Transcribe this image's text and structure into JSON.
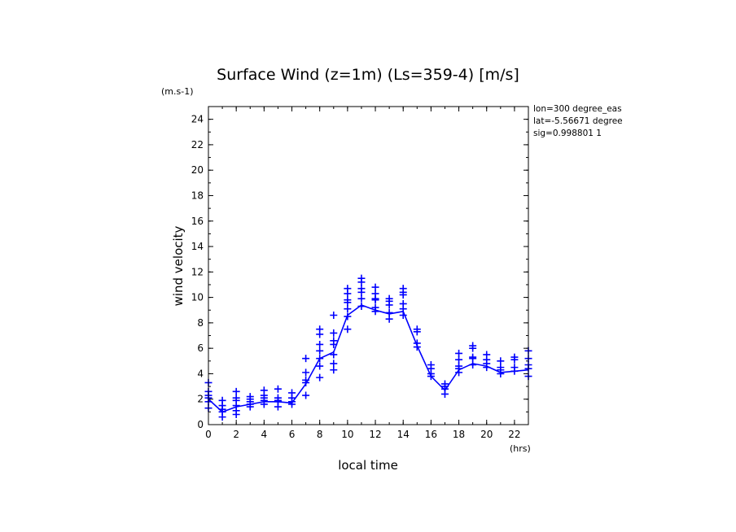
{
  "chart_data": {
    "type": "line",
    "title": "Surface Wind (z=1m) (Ls=359-4) [m/s]",
    "ylabel": "wind velocity",
    "yunit": "(m.s-1)",
    "xlabel": "local time",
    "xunit": "(hrs)",
    "xlim": [
      0,
      23
    ],
    "ylim": [
      0,
      25
    ],
    "xticks": [
      0,
      2,
      4,
      6,
      8,
      10,
      12,
      14,
      16,
      18,
      20,
      22
    ],
    "yticks": [
      0,
      2,
      4,
      6,
      8,
      10,
      12,
      14,
      16,
      18,
      20,
      22,
      24
    ],
    "annotations": [
      "lon=300 degree_eas",
      "lat=-5.56671 degree",
      "sig=0.998801 1"
    ],
    "colors": {
      "series": "#0000ff",
      "axes": "#000000"
    },
    "series": [
      {
        "type": "line",
        "x": [
          0,
          1,
          2,
          3,
          4,
          5,
          6,
          7,
          8,
          9,
          10,
          11,
          12,
          13,
          14,
          15,
          16,
          17,
          18,
          19,
          20,
          21,
          22,
          23
        ],
        "values": [
          2.0,
          1.0,
          1.4,
          1.6,
          1.8,
          1.8,
          1.7,
          3.2,
          5.2,
          5.7,
          8.6,
          9.4,
          9.0,
          8.7,
          8.9,
          6.2,
          3.8,
          2.7,
          4.3,
          4.8,
          4.6,
          4.1,
          4.2,
          4.3
        ]
      },
      {
        "type": "scatter",
        "marker": "+",
        "points": [
          [
            0,
            3.3
          ],
          [
            0,
            2.6
          ],
          [
            0,
            2.3
          ],
          [
            0,
            2.1
          ],
          [
            0,
            1.8
          ],
          [
            0,
            1.3
          ],
          [
            1,
            1.9
          ],
          [
            1,
            1.5
          ],
          [
            1,
            1.2
          ],
          [
            1,
            1.0
          ],
          [
            1,
            0.6
          ],
          [
            2,
            2.6
          ],
          [
            2,
            2.1
          ],
          [
            2,
            1.9
          ],
          [
            2,
            1.5
          ],
          [
            2,
            1.1
          ],
          [
            2,
            0.8
          ],
          [
            3,
            2.2
          ],
          [
            3,
            2.0
          ],
          [
            3,
            1.8
          ],
          [
            3,
            1.6
          ],
          [
            3,
            1.4
          ],
          [
            4,
            2.7
          ],
          [
            4,
            2.3
          ],
          [
            4,
            2.1
          ],
          [
            4,
            1.9
          ],
          [
            4,
            1.6
          ],
          [
            5,
            2.8
          ],
          [
            5,
            2.1
          ],
          [
            5,
            1.9
          ],
          [
            5,
            1.8
          ],
          [
            5,
            1.4
          ],
          [
            6,
            2.5
          ],
          [
            6,
            2.1
          ],
          [
            6,
            1.8
          ],
          [
            6,
            1.6
          ],
          [
            7,
            5.2
          ],
          [
            7,
            4.1
          ],
          [
            7,
            3.5
          ],
          [
            7,
            3.3
          ],
          [
            7,
            2.3
          ],
          [
            8,
            7.5
          ],
          [
            8,
            7.1
          ],
          [
            8,
            6.3
          ],
          [
            8,
            5.8
          ],
          [
            8,
            5.2
          ],
          [
            8,
            4.6
          ],
          [
            8,
            3.7
          ],
          [
            9,
            8.6
          ],
          [
            9,
            7.2
          ],
          [
            9,
            6.6
          ],
          [
            9,
            6.3
          ],
          [
            9,
            5.5
          ],
          [
            9,
            4.8
          ],
          [
            9,
            4.3
          ],
          [
            10,
            10.7
          ],
          [
            10,
            10.3
          ],
          [
            10,
            9.8
          ],
          [
            10,
            9.6
          ],
          [
            10,
            9.1
          ],
          [
            10,
            8.5
          ],
          [
            10,
            7.5
          ],
          [
            11,
            11.5
          ],
          [
            11,
            11.2
          ],
          [
            11,
            10.7
          ],
          [
            11,
            10.4
          ],
          [
            11,
            9.9
          ],
          [
            11,
            9.3
          ],
          [
            12,
            10.8
          ],
          [
            12,
            10.3
          ],
          [
            12,
            9.9
          ],
          [
            12,
            9.8
          ],
          [
            12,
            9.2
          ],
          [
            12,
            8.9
          ],
          [
            13,
            9.9
          ],
          [
            13,
            9.7
          ],
          [
            13,
            9.4
          ],
          [
            13,
            8.8
          ],
          [
            13,
            8.3
          ],
          [
            14,
            10.7
          ],
          [
            14,
            10.4
          ],
          [
            14,
            10.2
          ],
          [
            14,
            9.5
          ],
          [
            14,
            9.1
          ],
          [
            14,
            8.6
          ],
          [
            15,
            7.5
          ],
          [
            15,
            7.3
          ],
          [
            15,
            6.4
          ],
          [
            15,
            6.1
          ],
          [
            16,
            4.7
          ],
          [
            16,
            4.4
          ],
          [
            16,
            4.0
          ],
          [
            16,
            3.8
          ],
          [
            17,
            3.2
          ],
          [
            17,
            3.0
          ],
          [
            17,
            2.8
          ],
          [
            17,
            2.4
          ],
          [
            18,
            5.6
          ],
          [
            18,
            5.1
          ],
          [
            18,
            4.6
          ],
          [
            18,
            4.4
          ],
          [
            18,
            4.1
          ],
          [
            19,
            6.2
          ],
          [
            19,
            6.0
          ],
          [
            19,
            5.3
          ],
          [
            19,
            5.2
          ],
          [
            19,
            4.7
          ],
          [
            20,
            5.5
          ],
          [
            20,
            5.1
          ],
          [
            20,
            4.8
          ],
          [
            20,
            4.5
          ],
          [
            21,
            5.0
          ],
          [
            21,
            4.5
          ],
          [
            21,
            4.3
          ],
          [
            21,
            4.0
          ],
          [
            22,
            5.3
          ],
          [
            22,
            5.1
          ],
          [
            22,
            4.5
          ],
          [
            22,
            4.2
          ],
          [
            23,
            5.8
          ],
          [
            23,
            5.2
          ],
          [
            23,
            4.7
          ],
          [
            23,
            4.4
          ],
          [
            23,
            3.8
          ]
        ]
      }
    ]
  }
}
